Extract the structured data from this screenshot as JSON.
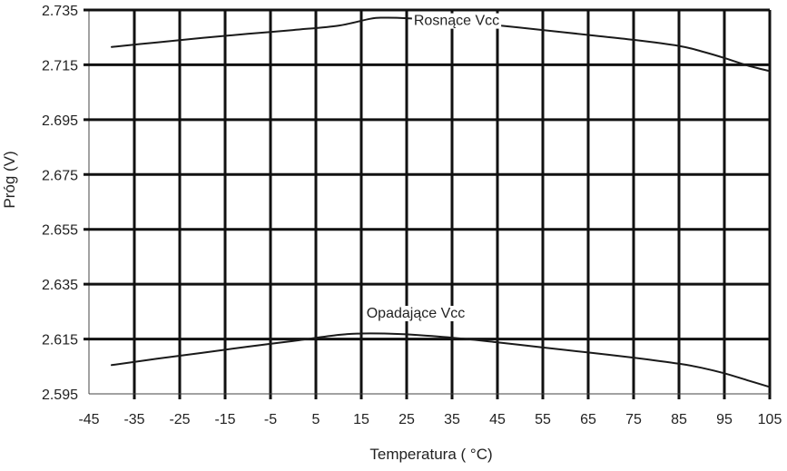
{
  "chart_data": {
    "type": "line",
    "xlabel": "Temperatura ( °C)",
    "ylabel": "Próg (V)",
    "xlim": [
      -45,
      105
    ],
    "ylim": [
      2.595,
      2.735
    ],
    "x_ticks": [
      -45,
      -35,
      -25,
      -15,
      -5,
      5,
      15,
      25,
      35,
      45,
      55,
      65,
      75,
      85,
      95,
      105
    ],
    "x_tick_labels": [
      "-45",
      "-35",
      "-25",
      "-15",
      "-5",
      "5",
      "15",
      "25",
      "35",
      "45",
      "55",
      "65",
      "75",
      "85",
      "95",
      "105"
    ],
    "y_ticks": [
      2.595,
      2.615,
      2.635,
      2.655,
      2.675,
      2.695,
      2.715,
      2.735
    ],
    "y_tick_labels": [
      "2.595",
      "2.615",
      "2.635",
      "2.655",
      "2.675",
      "2.695",
      "2.715",
      "2.735"
    ],
    "grid": true,
    "series": [
      {
        "name": "Rosnące Vcc",
        "x": [
          -40,
          -30,
          -20,
          -10,
          0,
          10,
          17,
          20,
          25,
          35,
          45,
          55,
          65,
          75,
          85,
          90,
          95,
          100,
          105
        ],
        "values": [
          2.7215,
          2.7232,
          2.7248,
          2.7263,
          2.7277,
          2.7293,
          2.7318,
          2.7322,
          2.732,
          2.7309,
          2.7294,
          2.7277,
          2.7259,
          2.7241,
          2.7219,
          2.7199,
          2.7175,
          2.7148,
          2.7127
        ]
      },
      {
        "name": "Opadające Vcc",
        "x": [
          -40,
          -30,
          -20,
          -10,
          0,
          10,
          15,
          20,
          25,
          35,
          45,
          55,
          65,
          75,
          85,
          90,
          95,
          100,
          105
        ],
        "values": [
          2.6055,
          2.6078,
          2.61,
          2.6122,
          2.6143,
          2.6165,
          2.617,
          2.617,
          2.6167,
          2.6155,
          2.6138,
          2.6119,
          2.6101,
          2.6082,
          2.606,
          2.6045,
          2.6025,
          2.6,
          2.5975
        ]
      }
    ],
    "annotations": [
      {
        "text": "Rosnące Vcc",
        "x": 36,
        "y": 2.7295
      },
      {
        "text": "Opadające Vcc",
        "x": 27,
        "y": 2.6228
      }
    ]
  }
}
